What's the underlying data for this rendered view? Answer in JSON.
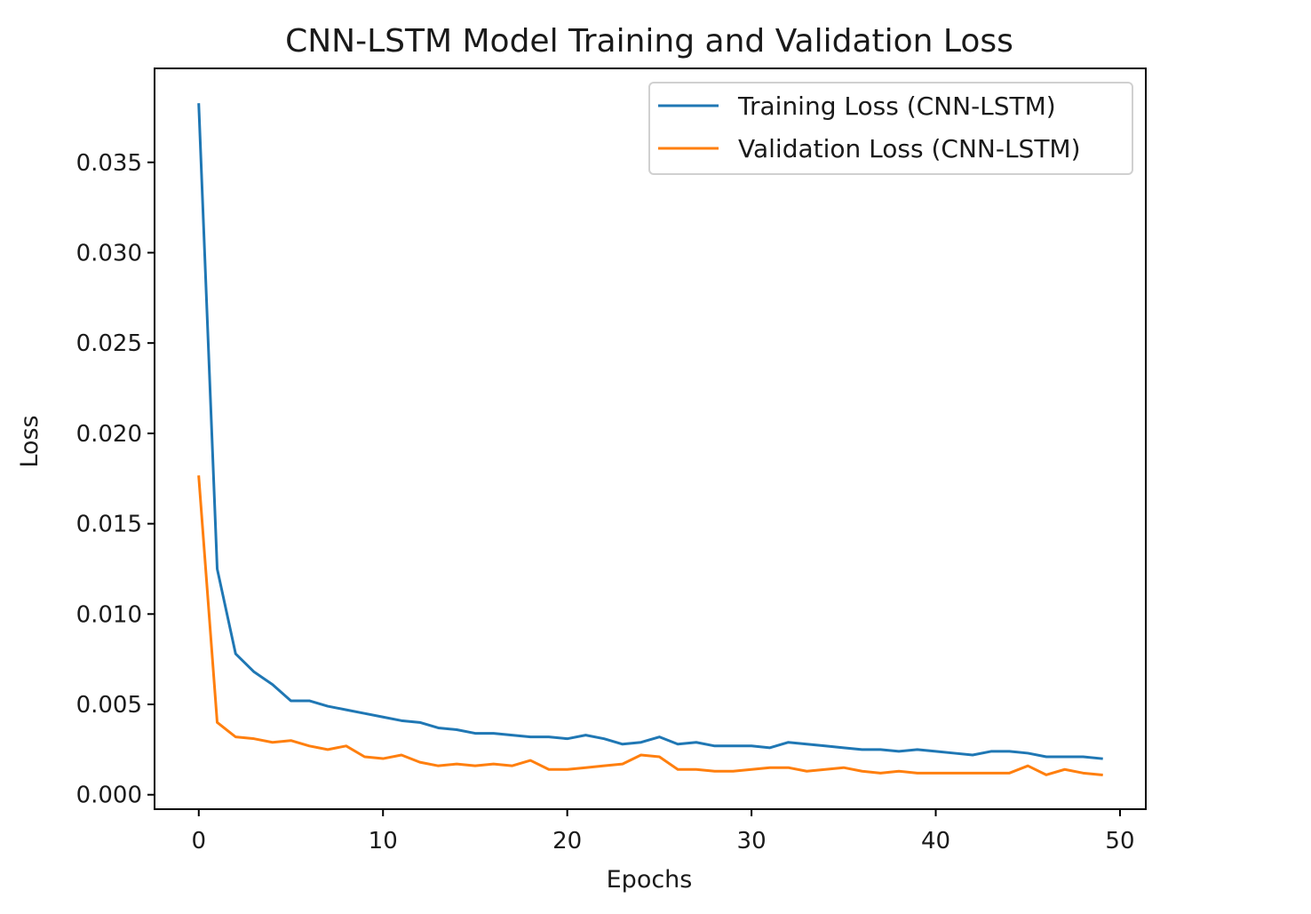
{
  "chart_data": {
    "type": "line",
    "title": "CNN-LSTM Model Training and Validation Loss",
    "xlabel": "Epochs",
    "ylabel": "Loss",
    "xlim": [
      -2.4,
      51.4
    ],
    "ylim": [
      -0.0008,
      0.0402
    ],
    "xticks": [
      0,
      10,
      20,
      30,
      40,
      50
    ],
    "xtick_labels": [
      "0",
      "10",
      "20",
      "30",
      "40",
      "50"
    ],
    "yticks": [
      0.0,
      0.005,
      0.01,
      0.015,
      0.02,
      0.025,
      0.03,
      0.035
    ],
    "ytick_labels": [
      "0.000",
      "0.005",
      "0.010",
      "0.015",
      "0.020",
      "0.025",
      "0.030",
      "0.035"
    ],
    "grid": false,
    "legend_position": "top-right",
    "x": [
      0,
      1,
      2,
      3,
      4,
      5,
      6,
      7,
      8,
      9,
      10,
      11,
      12,
      13,
      14,
      15,
      16,
      17,
      18,
      19,
      20,
      21,
      22,
      23,
      24,
      25,
      26,
      27,
      28,
      29,
      30,
      31,
      32,
      33,
      34,
      35,
      36,
      37,
      38,
      39,
      40,
      41,
      42,
      43,
      44,
      45,
      46,
      47,
      48,
      49
    ],
    "series": [
      {
        "name": "Training Loss (CNN-LSTM)",
        "color": "#1f77b4",
        "values": [
          0.0382,
          0.0125,
          0.0078,
          0.0068,
          0.0061,
          0.0052,
          0.0052,
          0.0049,
          0.0047,
          0.0045,
          0.0043,
          0.0041,
          0.004,
          0.0037,
          0.0036,
          0.0034,
          0.0034,
          0.0033,
          0.0032,
          0.0032,
          0.0031,
          0.0033,
          0.0031,
          0.0028,
          0.0029,
          0.0032,
          0.0028,
          0.0029,
          0.0027,
          0.0027,
          0.0027,
          0.0026,
          0.0029,
          0.0028,
          0.0027,
          0.0026,
          0.0025,
          0.0025,
          0.0024,
          0.0025,
          0.0024,
          0.0023,
          0.0022,
          0.0024,
          0.0024,
          0.0023,
          0.0021,
          0.0021,
          0.0021,
          0.002
        ]
      },
      {
        "name": "Validation Loss (CNN-LSTM)",
        "color": "#ff7f0e",
        "values": [
          0.0176,
          0.004,
          0.0032,
          0.0031,
          0.0029,
          0.003,
          0.0027,
          0.0025,
          0.0027,
          0.0021,
          0.002,
          0.0022,
          0.0018,
          0.0016,
          0.0017,
          0.0016,
          0.0017,
          0.0016,
          0.0019,
          0.0014,
          0.0014,
          0.0015,
          0.0016,
          0.0017,
          0.0022,
          0.0021,
          0.0014,
          0.0014,
          0.0013,
          0.0013,
          0.0014,
          0.0015,
          0.0015,
          0.0013,
          0.0014,
          0.0015,
          0.0013,
          0.0012,
          0.0013,
          0.0012,
          0.0012,
          0.0012,
          0.0012,
          0.0012,
          0.0012,
          0.0016,
          0.0011,
          0.0014,
          0.0012,
          0.0011
        ]
      }
    ]
  }
}
